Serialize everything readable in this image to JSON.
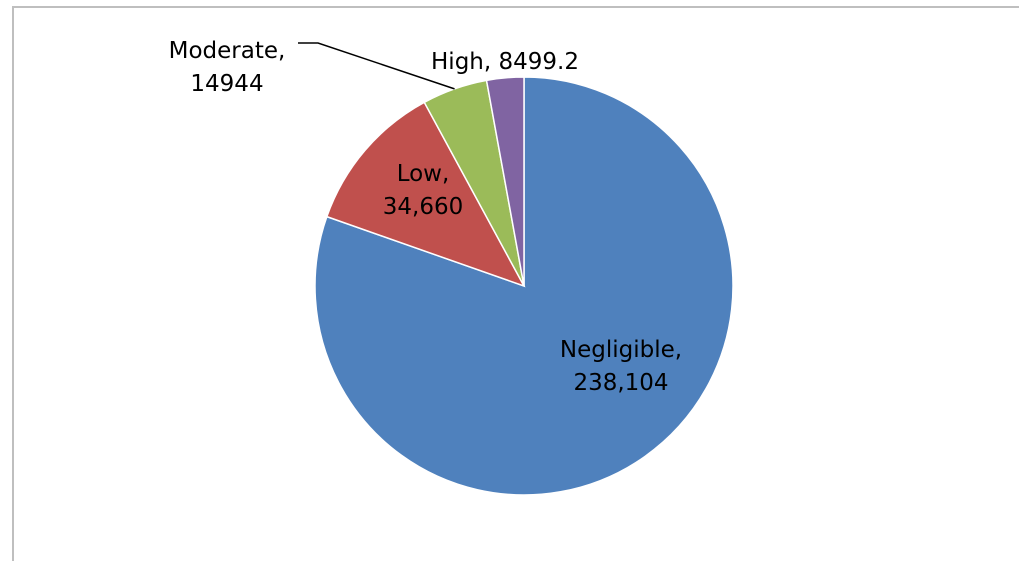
{
  "chart_data": {
    "type": "pie",
    "title": "",
    "legend": "none",
    "slices": [
      {
        "name": "Negligible",
        "value": 238104,
        "value_label": "238,104",
        "color": "#4F81BD"
      },
      {
        "name": "Low",
        "value": 34660,
        "value_label": "34,660",
        "color": "#C0504D"
      },
      {
        "name": "Moderate",
        "value": 14944,
        "value_label": "14944",
        "color": "#9BBB59"
      },
      {
        "name": "High",
        "value": 8499.2,
        "value_label": "8499.2",
        "color": "#8064A2"
      }
    ]
  }
}
